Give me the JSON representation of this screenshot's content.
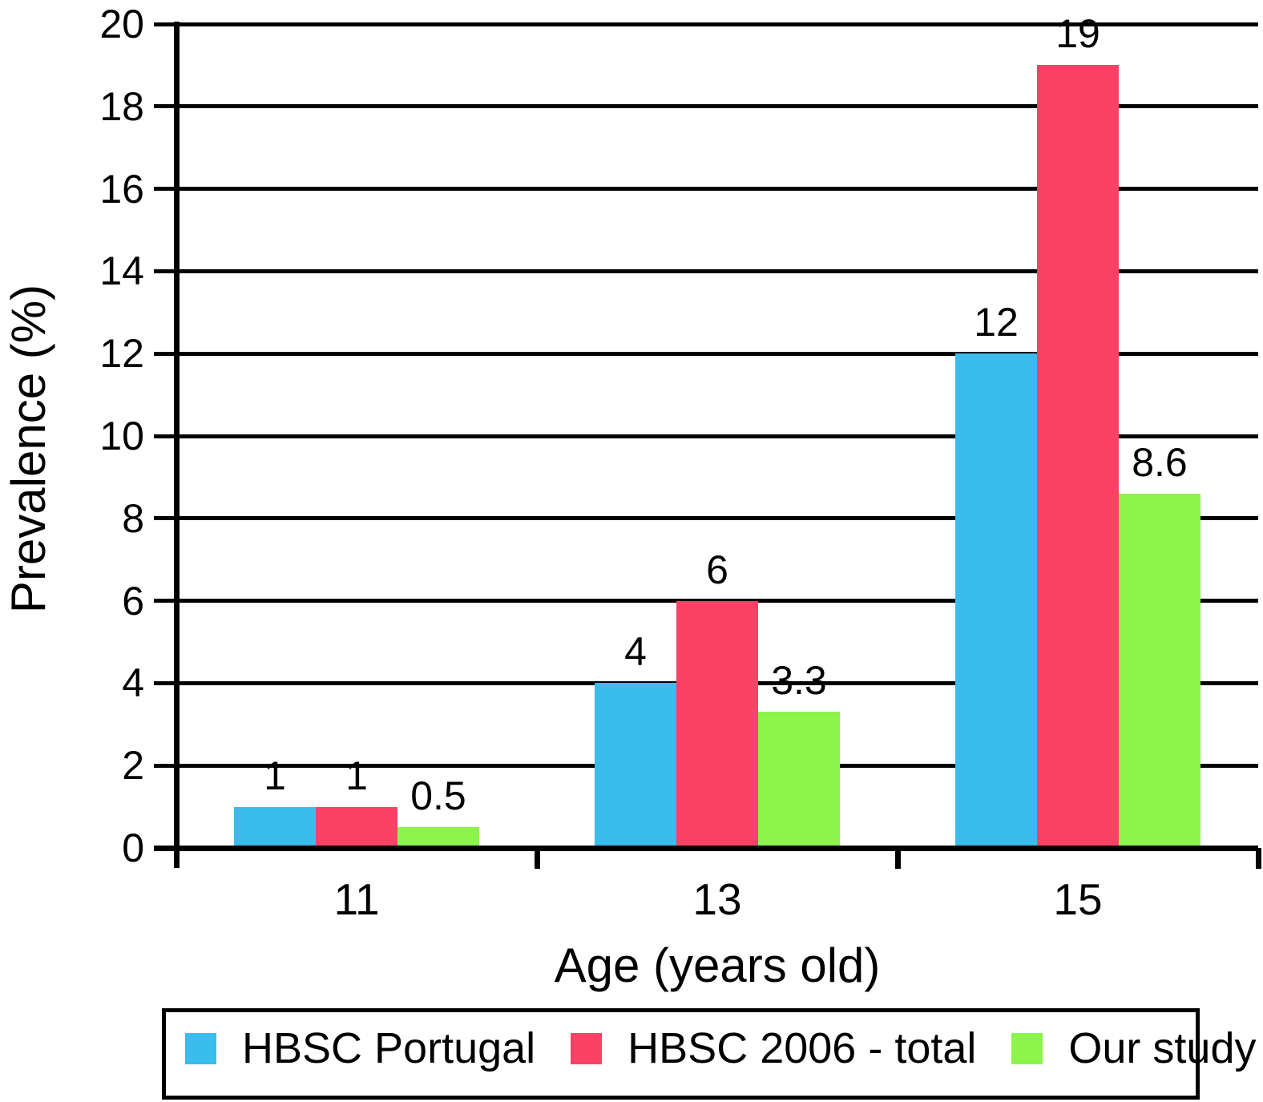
{
  "chart_data": {
    "type": "bar",
    "title": "",
    "xlabel": "Age (years old)",
    "ylabel": "Prevalence (%)",
    "categories": [
      "11",
      "13",
      "15"
    ],
    "series": [
      {
        "name": "HBSC Portugal",
        "color": "#3ABCEC",
        "values": [
          1,
          4,
          12
        ],
        "labels": [
          "1",
          "4",
          "12"
        ]
      },
      {
        "name": "HBSC 2006 - total",
        "color": "#FB4166",
        "values": [
          1,
          6,
          19
        ],
        "labels": [
          "1",
          "6",
          "19"
        ]
      },
      {
        "name": "Our study",
        "color": "#8CF44B",
        "values": [
          0.5,
          3.3,
          8.6
        ],
        "labels": [
          "0.5",
          "3.3",
          "8.6"
        ]
      }
    ],
    "ylim": [
      0,
      20
    ],
    "ytick_step": 2,
    "grid": true,
    "legend_position": "bottom",
    "axis_color": "#000000",
    "background": "#FFFFFF"
  }
}
